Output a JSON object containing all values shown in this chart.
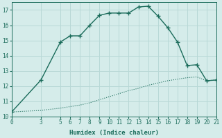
{
  "xlabel": "Humidex (Indice chaleur)",
  "bg_color": "#d5ecea",
  "grid_color": "#b8d8d6",
  "line_color": "#1a6b5a",
  "xlim": [
    0,
    21
  ],
  "ylim": [
    10,
    17.5
  ],
  "yticks": [
    10,
    11,
    12,
    13,
    14,
    15,
    16,
    17
  ],
  "xticks": [
    0,
    3,
    5,
    6,
    7,
    8,
    9,
    10,
    11,
    12,
    13,
    14,
    15,
    16,
    17,
    18,
    19,
    20,
    21
  ],
  "line1_x": [
    0,
    3,
    5,
    6,
    7,
    8,
    9,
    10,
    11,
    12,
    13,
    14,
    15,
    16,
    17,
    18,
    19,
    20,
    21
  ],
  "line1_y": [
    10.3,
    12.4,
    14.9,
    15.3,
    15.3,
    16.0,
    16.65,
    16.8,
    16.8,
    16.8,
    17.2,
    17.25,
    16.6,
    15.85,
    14.9,
    13.35,
    13.4,
    12.35,
    12.4
  ],
  "line2_x": [
    0,
    3,
    5,
    6,
    7,
    8,
    9,
    10,
    11,
    12,
    13,
    14,
    15,
    16,
    17,
    18,
    19,
    20,
    21
  ],
  "line2_y": [
    10.3,
    10.4,
    10.55,
    10.65,
    10.75,
    10.9,
    11.1,
    11.3,
    11.5,
    11.7,
    11.85,
    12.05,
    12.2,
    12.35,
    12.45,
    12.55,
    12.6,
    12.35,
    12.4
  ]
}
